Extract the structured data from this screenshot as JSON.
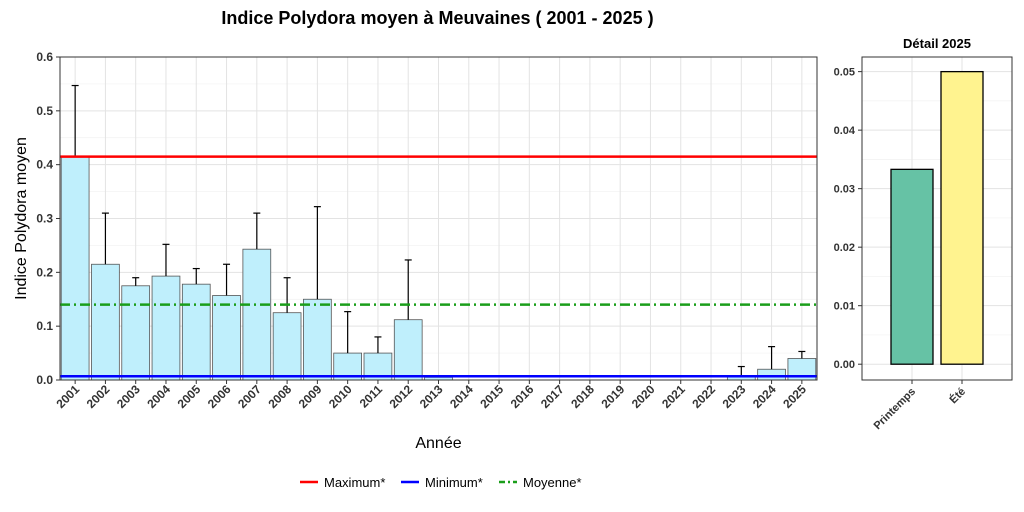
{
  "title": "Indice Polydora moyen à Meuvaines ( 2001 - 2025 )",
  "chart_data": [
    {
      "type": "bar",
      "xlabel": "Année",
      "ylabel": "Indice Polydora moyen",
      "ylim": [
        0,
        0.6
      ],
      "yticks": [
        "0.0",
        "0.1",
        "0.2",
        "0.3",
        "0.4",
        "0.5",
        "0.6"
      ],
      "grid": true,
      "bar_color": "#BFEFFC",
      "categories": [
        "2001",
        "2002",
        "2003",
        "2004",
        "2005",
        "2006",
        "2007",
        "2008",
        "2009",
        "2010",
        "2011",
        "2012",
        "2013",
        "2014",
        "2015",
        "2016",
        "2017",
        "2018",
        "2019",
        "2020",
        "2021",
        "2022",
        "2023",
        "2024",
        "2025"
      ],
      "values": [
        0.415,
        0.215,
        0.175,
        0.193,
        0.178,
        0.157,
        0.243,
        0.125,
        0.15,
        0.05,
        0.05,
        0.112,
        0.005,
        0,
        0,
        0,
        0,
        0,
        0,
        0,
        0,
        0,
        0.008,
        0.02,
        0.04
      ],
      "error_upper": [
        0.547,
        0.31,
        0.19,
        0.252,
        0.207,
        0.215,
        0.31,
        0.19,
        0.322,
        0.127,
        0.08,
        0.223,
        null,
        null,
        null,
        null,
        null,
        null,
        null,
        null,
        null,
        null,
        0.025,
        0.062,
        0.053
      ],
      "reference_lines": [
        {
          "name": "Maximum*",
          "value": 0.415,
          "color": "#FF0000",
          "style": "solid"
        },
        {
          "name": "Minimum*",
          "value": 0.007,
          "color": "#0000FF",
          "style": "solid"
        },
        {
          "name": "Moyenne*",
          "value": 0.14,
          "color": "#1A9E1A",
          "style": "dashdot"
        }
      ]
    },
    {
      "type": "bar",
      "title": "Détail 2025",
      "categories": [
        "Printemps",
        "Été"
      ],
      "values": [
        0.0333,
        0.05
      ],
      "colors": [
        "#66C2A5",
        "#FFF38F"
      ],
      "ylim": [
        0,
        0.05
      ],
      "yticks": [
        "0.00",
        "0.01",
        "0.02",
        "0.03",
        "0.04",
        "0.05"
      ],
      "grid": true
    }
  ],
  "legend": {
    "placement": "bottom",
    "items": [
      {
        "label": "Maximum*",
        "color": "#FF0000",
        "style": "solid"
      },
      {
        "label": "Minimum*",
        "color": "#0000FF",
        "style": "solid"
      },
      {
        "label": "Moyenne*",
        "color": "#1A9E1A",
        "style": "dashdot"
      }
    ]
  }
}
